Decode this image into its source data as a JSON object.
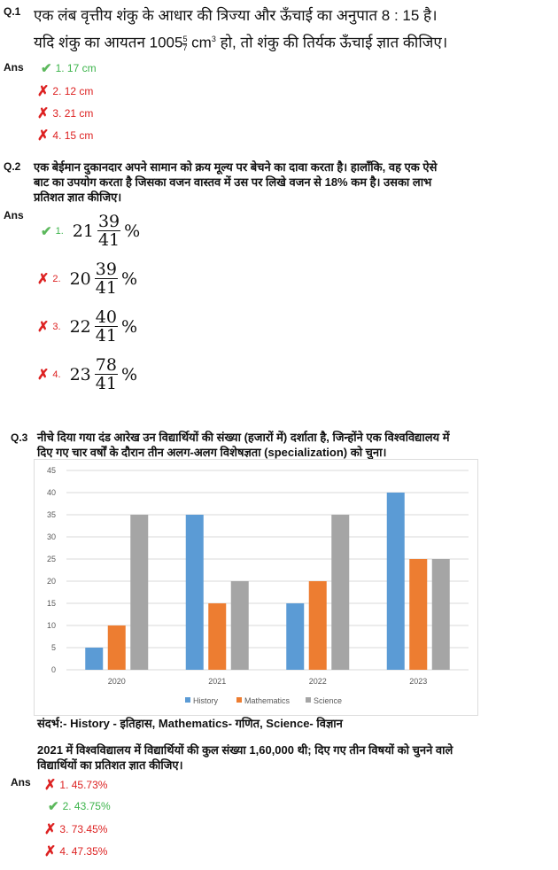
{
  "q1": {
    "num": "Q.1",
    "line1": "एक लंब वृत्तीय शंकु के आधार की त्रिज्या और ऊँचाई का अनुपात 8 : 15 है।",
    "line2a": "यदि शंकु का आयतन 1005",
    "frac_n": "5",
    "frac_d": "7",
    "line2b": " cm",
    "sup": "3",
    "line2c": " हो, तो शंकु की तिर्यक ऊँचाई ज्ञात कीजिए।",
    "ans_label": "Ans",
    "options": [
      {
        "text": "1. 17 cm",
        "correct": true
      },
      {
        "text": "2. 12 cm",
        "correct": false
      },
      {
        "text": "3. 21 cm",
        "correct": false
      },
      {
        "text": "4. 15 cm",
        "correct": false
      }
    ]
  },
  "q2": {
    "num": "Q.2",
    "lines": [
      "एक बेईमान दुकानदार अपने सामान को क्रय मूल्य पर बेचने का दावा करता है। हालाँकि, वह एक ऐसे",
      "बाट का उपयोग करता है जिसका वजन वास्तव में उस पर लिखे वजन से 18% कम है। उसका लाभ",
      "प्रतिशत ज्ञात कीजिए।"
    ],
    "ans_label": "Ans",
    "options": [
      {
        "num": "1.",
        "whole": "21",
        "n": "39",
        "d": "41",
        "pct": "%",
        "correct": true
      },
      {
        "num": "2.",
        "whole": "20",
        "n": "39",
        "d": "41",
        "pct": "%",
        "correct": false
      },
      {
        "num": "3.",
        "whole": "22",
        "n": "40",
        "d": "41",
        "pct": "%",
        "correct": false
      },
      {
        "num": "4.",
        "whole": "23",
        "n": "78",
        "d": "41",
        "pct": "%",
        "correct": false
      }
    ]
  },
  "q3": {
    "num": "Q.3",
    "lines": [
      "नीचे दिया गया दंड आरेख उन विद्यार्थियों की संख्या (हजारों में) दर्शाता है, जिन्होंने एक विश्वविद्यालय में",
      "दिए गए चार वर्षों के दौरान तीन अलग-अलग विशेषज्ञता (specialization) को चुना।"
    ],
    "reference": "संदर्भ:- History - इतिहास, Mathematics- गणित, Science- विज्ञान",
    "question": [
      "2021 में विश्वविद्यालय में विद्यार्थियों की कुल संख्या 1,60,000 थी; दिए गए तीन विषयों को चुनने वाले",
      "विद्यार्थियों का प्रतिशत ज्ञात कीजिए।"
    ],
    "ans_label": "Ans",
    "options": [
      {
        "text": "1. 45.73%",
        "correct": false
      },
      {
        "text": "2. 43.75%",
        "correct": true
      },
      {
        "text": "3. 73.45%",
        "correct": false
      },
      {
        "text": "4. 47.35%",
        "correct": false
      }
    ]
  },
  "chart_data": {
    "type": "bar",
    "categories": [
      "2020",
      "2021",
      "2022",
      "2023"
    ],
    "series": [
      {
        "name": "History",
        "color": "#5b9bd5",
        "values": [
          5,
          35,
          15,
          40
        ]
      },
      {
        "name": "Mathematics",
        "color": "#ed7d31",
        "values": [
          10,
          15,
          20,
          25
        ]
      },
      {
        "name": "Science",
        "color": "#a5a5a5",
        "values": [
          35,
          20,
          35,
          25
        ]
      }
    ],
    "ylim": [
      0,
      45
    ],
    "yticks": [
      0,
      5,
      10,
      15,
      20,
      25,
      30,
      35,
      40,
      45
    ],
    "grid": true,
    "legend": "bottom"
  }
}
